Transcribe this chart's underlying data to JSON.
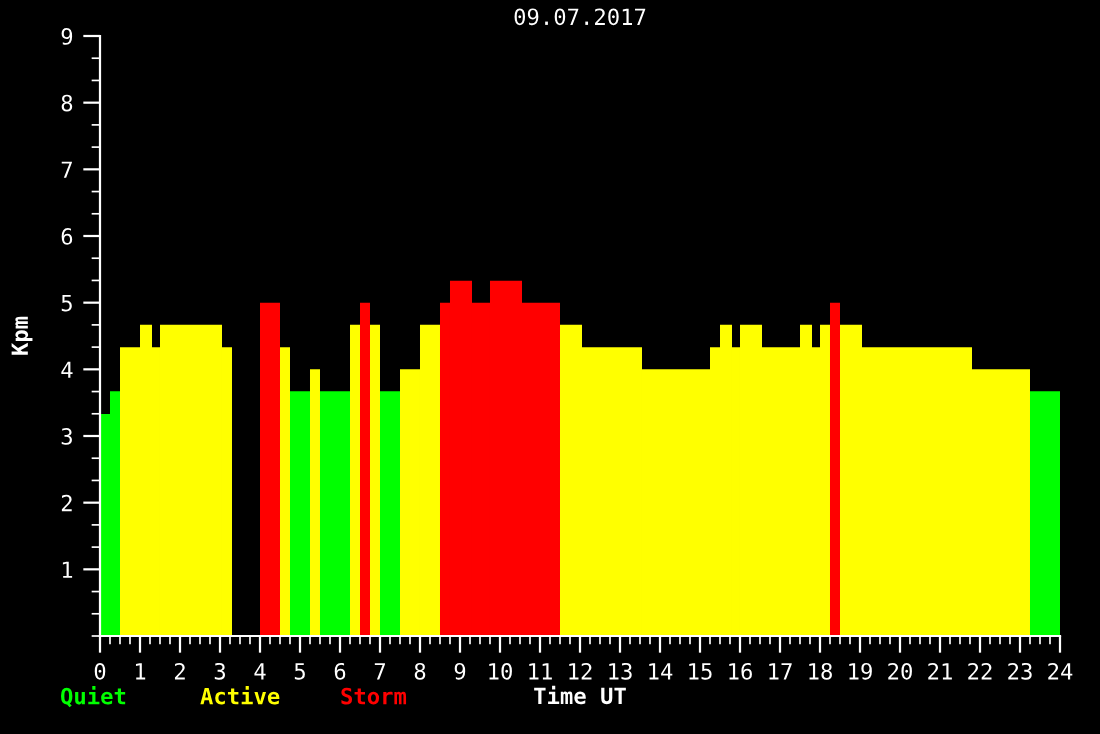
{
  "chart_data": {
    "type": "histogram",
    "title": "09.07.2017",
    "xlabel": "Time UT",
    "ylabel": "Kpm",
    "bins": [
      0,
      0.25,
      0.5,
      1.0,
      1.3,
      1.5,
      3.05,
      3.3,
      4.0,
      4.5,
      4.75,
      5.25,
      5.5,
      6.25,
      6.5,
      6.75,
      7.0,
      7.5,
      8.0,
      8.5,
      8.75,
      9.3,
      9.75,
      10.55,
      11.5,
      12.05,
      13.55,
      15.25,
      15.5,
      15.8,
      16.0,
      16.55,
      17.5,
      17.8,
      18.0,
      18.25,
      18.5,
      19.05,
      21.8,
      23.25,
      24
    ],
    "series": [
      {
        "name": "Quiet",
        "color": "#00ff00",
        "values": [
          3.33,
          3.67,
          null,
          null,
          null,
          null,
          null,
          null,
          null,
          null,
          3.67,
          null,
          3.67,
          null,
          null,
          null,
          3.67,
          null,
          null,
          null,
          null,
          null,
          null,
          null,
          null,
          null,
          null,
          null,
          null,
          null,
          null,
          null,
          null,
          null,
          null,
          null,
          null,
          null,
          null,
          3.67
        ]
      },
      {
        "name": "Active",
        "color": "#ffff00",
        "values": [
          null,
          null,
          4.33,
          4.67,
          4.33,
          4.67,
          4.33,
          null,
          null,
          4.33,
          null,
          4,
          null,
          4.67,
          null,
          4.67,
          null,
          4,
          4.67,
          null,
          null,
          null,
          null,
          null,
          4.67,
          4.33,
          4,
          4.33,
          4.67,
          4.33,
          4.67,
          4.33,
          4.67,
          4.33,
          4.67,
          null,
          4.67,
          4.33,
          4,
          null
        ]
      },
      {
        "name": "Storm",
        "color": "#ff0000",
        "values": [
          null,
          null,
          null,
          null,
          null,
          null,
          null,
          null,
          5,
          null,
          null,
          null,
          null,
          null,
          5,
          null,
          null,
          null,
          null,
          5,
          5.33,
          5,
          5.33,
          5,
          null,
          null,
          null,
          null,
          null,
          null,
          null,
          null,
          null,
          null,
          null,
          5,
          null,
          null,
          null,
          null
        ]
      }
    ],
    "xlim": [
      0,
      24
    ],
    "xticks": [
      0,
      1,
      2,
      3,
      4,
      5,
      6,
      7,
      8,
      9,
      10,
      11,
      12,
      13,
      14,
      15,
      16,
      17,
      18,
      19,
      20,
      21,
      22,
      23,
      24
    ],
    "ylim": [
      0,
      9
    ],
    "yticks": [
      1,
      2,
      3,
      4,
      5,
      6,
      7,
      8,
      9
    ],
    "legend": "bottom left",
    "grid": false
  }
}
